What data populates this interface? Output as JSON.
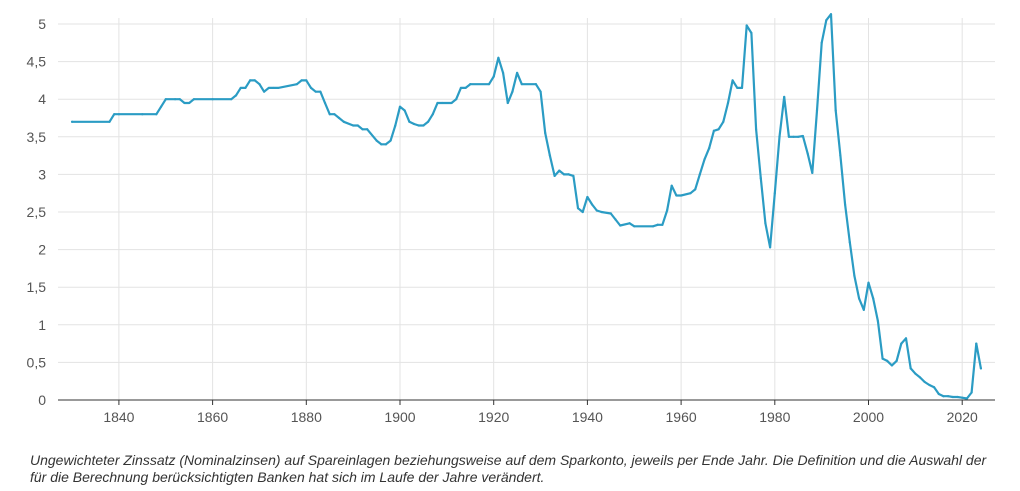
{
  "chart_data": {
    "type": "line",
    "xlim": [
      1827,
      2027
    ],
    "ylim": [
      0,
      5
    ],
    "grid": true,
    "legend": "none",
    "yticks": [
      "0",
      "0,5",
      "1",
      "1,5",
      "2",
      "2,5",
      "3",
      "3,5",
      "4",
      "4,5",
      "5"
    ],
    "xticks": [
      "1840",
      "1860",
      "1880",
      "1900",
      "1920",
      "1940",
      "1960",
      "1980",
      "2000",
      "2020"
    ],
    "line_color": "#2b9cc4",
    "series": [
      {
        "x": [
          1830,
          1838,
          1839,
          1840,
          1845,
          1848,
          1849,
          1850,
          1852,
          1853,
          1854,
          1855,
          1856,
          1860,
          1864,
          1865,
          1866,
          1867,
          1868,
          1869,
          1870,
          1871,
          1872,
          1873,
          1874,
          1878,
          1879,
          1880,
          1881,
          1882,
          1883,
          1884,
          1885,
          1886,
          1887,
          1888,
          1890,
          1891,
          1892,
          1893,
          1895,
          1896,
          1897,
          1898,
          1899,
          1900,
          1901,
          1902,
          1903,
          1904,
          1905,
          1906,
          1907,
          1908,
          1909,
          1911,
          1912,
          1913,
          1914,
          1915,
          1919,
          1920,
          1921,
          1922,
          1923,
          1924,
          1925,
          1926,
          1929,
          1930,
          1931,
          1932,
          1933,
          1934,
          1935,
          1936,
          1937,
          1938,
          1939,
          1940,
          1941,
          1942,
          1943,
          1945,
          1946,
          1947,
          1949,
          1950,
          1954,
          1955,
          1956,
          1957,
          1958,
          1959,
          1960,
          1962,
          1963,
          1964,
          1965,
          1966,
          1967,
          1968,
          1969,
          1970,
          1971,
          1972,
          1973,
          1974,
          1975,
          1976,
          1977,
          1978,
          1979,
          1980,
          1981,
          1982,
          1983,
          1984,
          1985,
          1986,
          1987,
          1988,
          1989,
          1990,
          1991,
          1992,
          1993,
          1994,
          1995,
          1996,
          1997,
          1998,
          1999,
          2000,
          2001,
          2002,
          2003,
          2004,
          2005,
          2006,
          2007,
          2008,
          2009,
          2010,
          2011,
          2012,
          2013,
          2014,
          2015,
          2016,
          2017,
          2018,
          2019,
          2020,
          2021,
          2022,
          2023,
          2024
        ],
        "y": [
          3.7,
          3.7,
          3.8,
          3.8,
          3.8,
          3.8,
          3.9,
          4.0,
          4.0,
          4.0,
          3.95,
          3.95,
          4.0,
          4.0,
          4.0,
          4.05,
          4.15,
          4.15,
          4.25,
          4.25,
          4.2,
          4.1,
          4.15,
          4.15,
          4.15,
          4.2,
          4.25,
          4.25,
          4.15,
          4.1,
          4.1,
          3.95,
          3.8,
          3.8,
          3.75,
          3.7,
          3.65,
          3.65,
          3.6,
          3.6,
          3.45,
          3.4,
          3.4,
          3.45,
          3.65,
          3.9,
          3.85,
          3.7,
          3.67,
          3.65,
          3.65,
          3.7,
          3.8,
          3.95,
          3.95,
          3.95,
          4.0,
          4.15,
          4.15,
          4.2,
          4.2,
          4.3,
          4.55,
          4.35,
          3.95,
          4.1,
          4.35,
          4.2,
          4.2,
          4.1,
          3.55,
          3.25,
          2.98,
          3.05,
          3.0,
          3.0,
          2.98,
          2.55,
          2.5,
          2.7,
          2.6,
          2.52,
          2.5,
          2.48,
          2.4,
          2.32,
          2.35,
          2.31,
          2.31,
          2.33,
          2.33,
          2.52,
          2.85,
          2.72,
          2.72,
          2.75,
          2.8,
          3.0,
          3.2,
          3.35,
          3.58,
          3.6,
          3.7,
          3.95,
          4.25,
          4.15,
          4.15,
          4.98,
          4.88,
          3.6,
          2.95,
          2.35,
          2.03,
          2.75,
          3.5,
          4.03,
          3.5,
          3.5,
          3.5,
          3.51,
          3.28,
          3.02,
          3.85,
          4.75,
          5.05,
          5.13,
          3.85,
          3.25,
          2.6,
          2.1,
          1.65,
          1.35,
          1.2,
          1.56,
          1.35,
          1.05,
          0.55,
          0.52,
          0.46,
          0.52,
          0.75,
          0.82,
          0.42,
          0.35,
          0.3,
          0.24,
          0.2,
          0.17,
          0.08,
          0.05,
          0.05,
          0.04,
          0.04,
          0.03,
          0.02,
          0.1,
          0.75,
          0.42
        ]
      }
    ]
  },
  "caption": "Ungewichteter Zinssatz (Nominalzinsen) auf Spareinlagen beziehungsweise auf dem Sparkonto, jeweils per Ende Jahr. Die Definition und die Auswahl der für die Berechnung berücksichtigten Banken hat sich im Laufe der Jahre verändert."
}
